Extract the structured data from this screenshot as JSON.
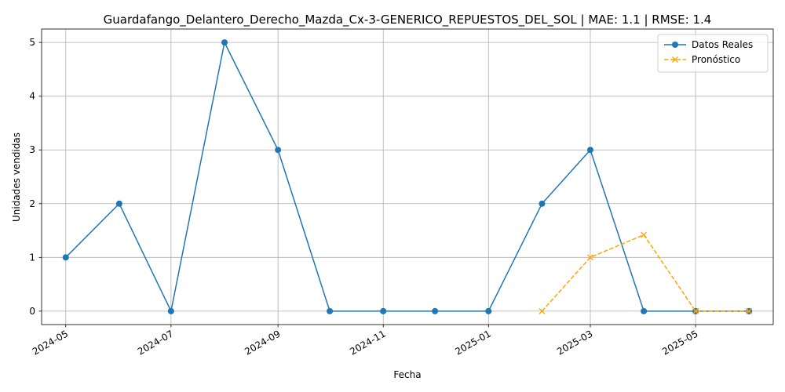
{
  "chart_data": {
    "type": "line",
    "title": "Guardafango_Delantero_Derecho_Mazda_Cx-3-GENERICO_REPUESTOS_DEL_SOL | MAE: 1.1 | RMSE: 1.4",
    "xlabel": "Fecha",
    "ylabel": "Unidades vendidas",
    "ylim": [
      -0.25,
      5.25
    ],
    "xlim": [
      "2024-04-17",
      "2025-06-15"
    ],
    "x_ticks": [
      "2024-05",
      "2024-07",
      "2024-09",
      "2024-11",
      "2025-01",
      "2025-03",
      "2025-05"
    ],
    "y_ticks": [
      "0",
      "1",
      "2",
      "3",
      "4",
      "5"
    ],
    "grid": true,
    "legend_position": "top-right",
    "series": [
      {
        "name": "Datos Reales",
        "color": "#1f77b4",
        "line_style": "solid",
        "marker": "circle",
        "x": [
          "2024-05-01",
          "2024-06-01",
          "2024-07-01",
          "2024-08-01",
          "2024-09-01",
          "2024-10-01",
          "2024-11-01",
          "2024-12-01",
          "2025-01-01",
          "2025-02-01",
          "2025-03-01",
          "2025-04-01",
          "2025-05-01",
          "2025-06-01"
        ],
        "values": [
          1,
          2,
          0,
          5,
          3,
          0,
          0,
          0,
          0,
          2,
          3,
          0,
          0,
          0
        ]
      },
      {
        "name": "Pronóstico",
        "color": "#ffa500",
        "line_style": "dashed",
        "marker": "x",
        "x": [
          "2025-02-01",
          "2025-03-01",
          "2025-04-01",
          "2025-05-01",
          "2025-06-01"
        ],
        "values": [
          0,
          1,
          1.42,
          0,
          0
        ]
      }
    ]
  }
}
